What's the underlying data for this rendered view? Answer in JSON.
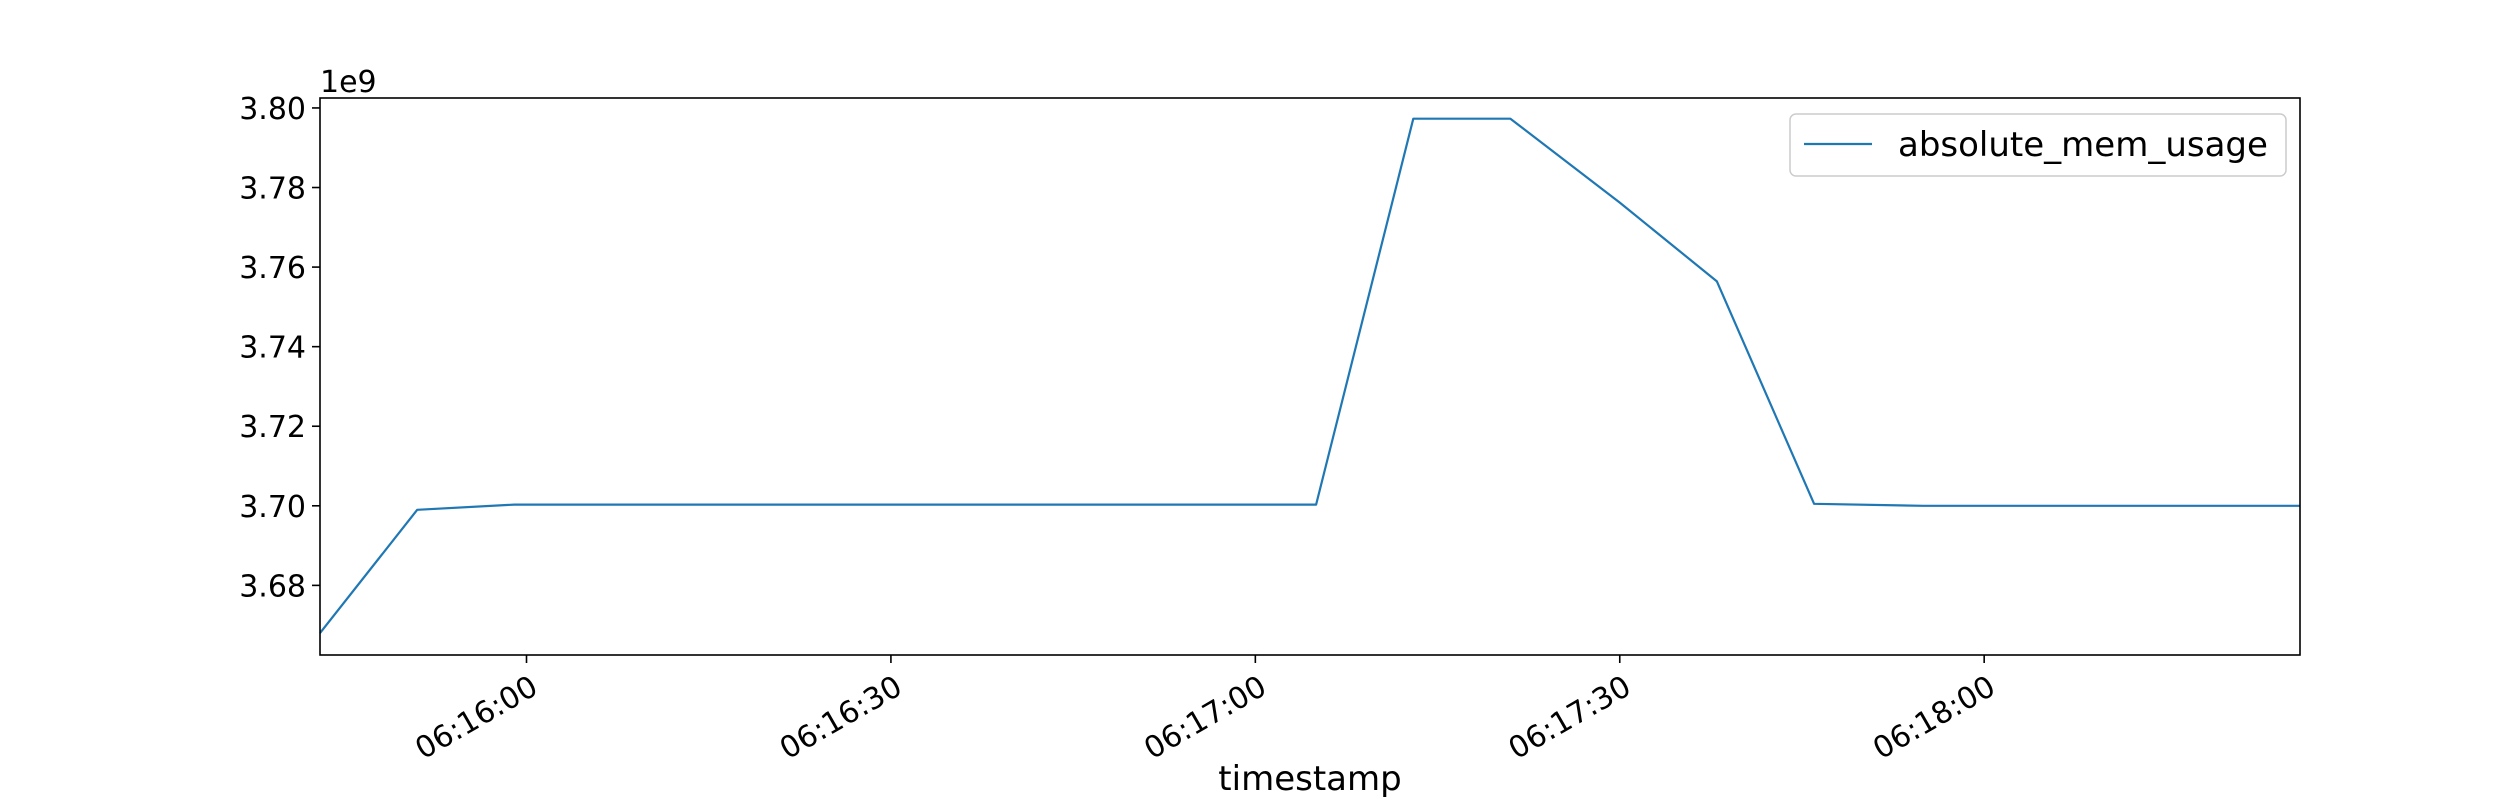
{
  "chart_data": {
    "type": "line",
    "title": "",
    "xlabel": "timestamp",
    "ylabel": "",
    "y_offset_label": "1e9",
    "y_scale": 1000000000,
    "ylim": [
      3.6625,
      3.8025
    ],
    "xlim": [
      "06:15:43",
      "06:18:26"
    ],
    "grid": false,
    "legend_position": "top-right",
    "x_ticks": [
      {
        "time": "06:16:00",
        "label": "06:16:00"
      },
      {
        "time": "06:16:30",
        "label": "06:16:30"
      },
      {
        "time": "06:17:00",
        "label": "06:17:00"
      },
      {
        "time": "06:17:30",
        "label": "06:17:30"
      },
      {
        "time": "06:18:00",
        "label": "06:18:00"
      }
    ],
    "y_ticks": [
      {
        "value": 3.68,
        "label": "3.68"
      },
      {
        "value": 3.7,
        "label": "3.70"
      },
      {
        "value": 3.72,
        "label": "3.72"
      },
      {
        "value": 3.74,
        "label": "3.74"
      },
      {
        "value": 3.76,
        "label": "3.76"
      },
      {
        "value": 3.78,
        "label": "3.78"
      },
      {
        "value": 3.8,
        "label": "3.80"
      }
    ],
    "series": [
      {
        "name": "absolute_mem_usage",
        "color": "#1f77b4",
        "points": [
          {
            "time": "06:15:43",
            "value": 3.668
          },
          {
            "time": "06:15:51",
            "value": 3.699
          },
          {
            "time": "06:15:59",
            "value": 3.7003
          },
          {
            "time": "06:17:05",
            "value": 3.7003
          },
          {
            "time": "06:17:13",
            "value": 3.7973
          },
          {
            "time": "06:17:21",
            "value": 3.7973
          },
          {
            "time": "06:17:30",
            "value": 3.7762
          },
          {
            "time": "06:17:38",
            "value": 3.7564
          },
          {
            "time": "06:17:46",
            "value": 3.7005
          },
          {
            "time": "06:17:55",
            "value": 3.7
          },
          {
            "time": "06:18:26",
            "value": 3.7
          }
        ]
      }
    ]
  }
}
